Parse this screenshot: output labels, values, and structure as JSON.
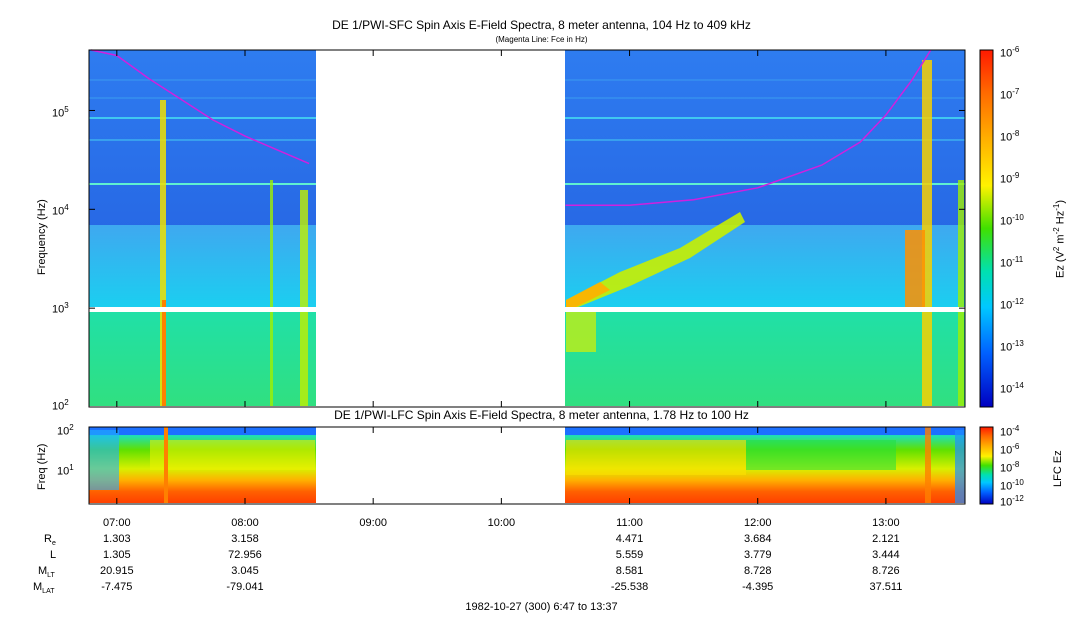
{
  "chart_data": [
    {
      "type": "heatmap",
      "name": "SFC spectrogram",
      "title": "DE 1/PWI-SFC  Spin Axis E-Field Spectra, 8 meter antenna, 104 Hz to 409 kHz",
      "subtitle": "(Magenta Line: Fce in Hz)",
      "ylabel": "Frequency (Hz)",
      "y_scale": "log",
      "ylim": [
        100,
        409000
      ],
      "y_ticks": [
        "10^2",
        "10^3",
        "10^4",
        "10^5"
      ],
      "x_range_hours": [
        6.783,
        13.617
      ],
      "data_gap_hours": [
        8.5,
        10.5
      ],
      "fce_line_hz": {
        "pass1": {
          "t": [
            6.8,
            7.0,
            7.25,
            7.5,
            7.75,
            8.0,
            8.25,
            8.5
          ],
          "f": [
            430000,
            360000,
            210000,
            130000,
            80000,
            55000,
            40000,
            29000
          ]
        },
        "pass2": {
          "t": [
            10.5,
            11.0,
            11.5,
            12.0,
            12.5,
            12.8,
            13.0,
            13.2,
            13.35
          ],
          "f": [
            11000,
            11000,
            12500,
            16500,
            28000,
            48000,
            90000,
            200000,
            430000
          ]
        }
      },
      "colorbar": {
        "label": "Ez (V^2 m^-2 Hz^-1)",
        "log_range": [
          -14.5,
          -6
        ],
        "ticks": [
          "10^-6",
          "10^-7",
          "10^-8",
          "10^-9",
          "10^-10",
          "10^-11",
          "10^-12",
          "10^-13",
          "10^-14"
        ]
      }
    },
    {
      "type": "heatmap",
      "name": "LFC spectrogram",
      "title": "DE 1/PWI-LFC  Spin Axis E-Field Spectra, 8 meter antenna, 1.78 Hz to 100 Hz",
      "ylabel": "Freq (Hz)",
      "y_scale": "log",
      "ylim": [
        1.78,
        100
      ],
      "y_ticks": [
        "10^1",
        "10^2"
      ],
      "x_range_hours": [
        6.783,
        13.617
      ],
      "data_gap_hours": [
        8.5,
        10.5
      ],
      "colorbar": {
        "label": "LFC Ez",
        "log_range": [
          -12.5,
          -4
        ],
        "ticks": [
          "10^-4",
          "10^-6",
          "10^-8",
          "10^-10",
          "10^-12"
        ]
      }
    }
  ],
  "x_ticks": [
    {
      "label": "07:00",
      "hour": 7
    },
    {
      "label": "08:00",
      "hour": 8
    },
    {
      "label": "09:00",
      "hour": 9
    },
    {
      "label": "10:00",
      "hour": 10
    },
    {
      "label": "11:00",
      "hour": 11
    },
    {
      "label": "12:00",
      "hour": 12
    },
    {
      "label": "13:00",
      "hour": 13
    }
  ],
  "ephemeris": {
    "labels": [
      "Re",
      "L",
      "MLT",
      "MLAT"
    ],
    "columns": [
      {
        "hour": 7,
        "values": [
          "1.303",
          "1.305",
          "20.915",
          "-7.475"
        ]
      },
      {
        "hour": 8,
        "values": [
          "3.158",
          "72.956",
          "3.045",
          "-79.041"
        ]
      },
      {
        "hour": 11,
        "values": [
          "4.471",
          "5.559",
          "8.581",
          "-25.538"
        ]
      },
      {
        "hour": 12,
        "values": [
          "3.684",
          "3.779",
          "8.728",
          "-4.395"
        ]
      },
      {
        "hour": 13,
        "values": [
          "2.121",
          "3.444",
          "8.726",
          "37.511"
        ]
      }
    ]
  },
  "footer": "1982-10-27 (300) 6:47 to 13:37",
  "colors": {
    "fce_line": "#d020e0",
    "gap_fill": "#ffffff",
    "band_white": "#ffffff"
  }
}
